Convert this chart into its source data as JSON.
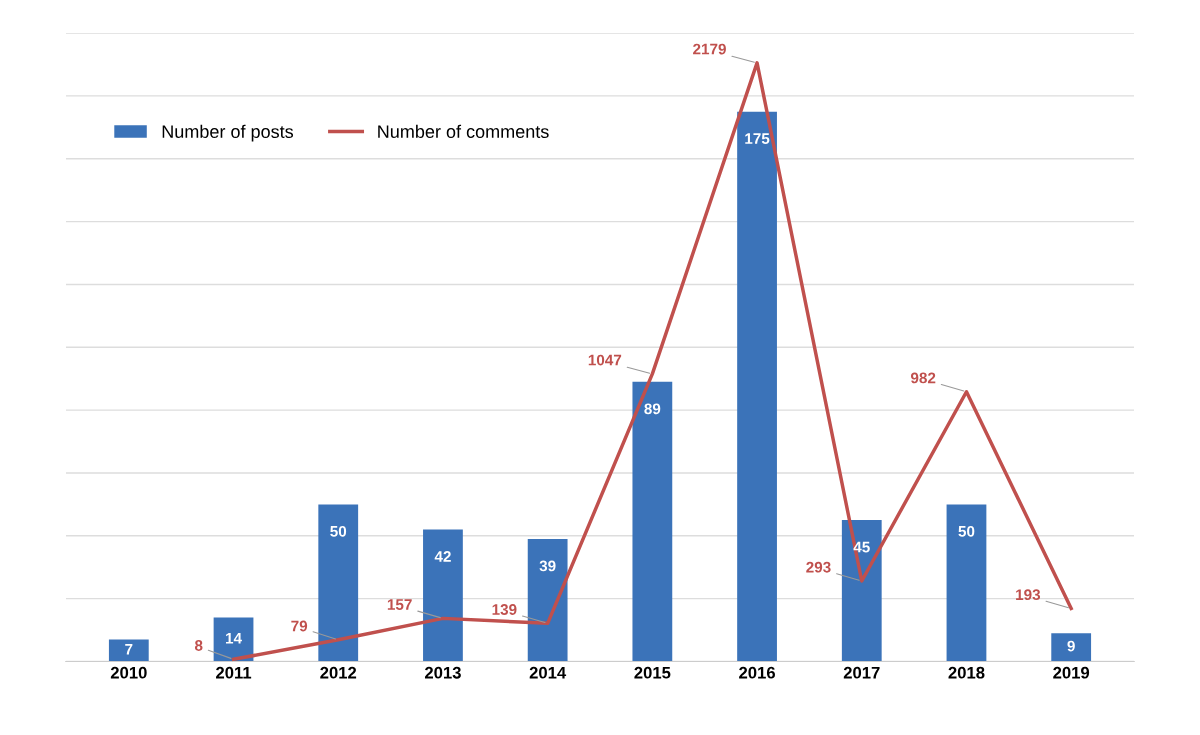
{
  "chart_data": {
    "type": "bar",
    "categories": [
      "2010",
      "2011",
      "2012",
      "2013",
      "2014",
      "2015",
      "2016",
      "2017",
      "2018",
      "2019"
    ],
    "series": [
      {
        "name": "Number of posts",
        "color": "#3b73b9",
        "values": [
          7,
          14,
          50,
          42,
          39,
          89,
          175,
          45,
          50,
          9
        ]
      },
      {
        "name": "Number of comments",
        "type": "line",
        "axis": "y2",
        "color": "#c0504d",
        "values": [
          null,
          8,
          79,
          157,
          139,
          1047,
          2179,
          293,
          982,
          193
        ]
      }
    ],
    "ylim": [
      0,
      200
    ],
    "yticks": [
      {
        "value": 0,
        "label": null
      },
      {
        "value": 20,
        "label": null
      },
      {
        "value": 40,
        "label": null
      },
      {
        "value": 60,
        "label": null
      },
      {
        "value": 80,
        "label": null
      },
      {
        "value": 100,
        "label": null
      },
      {
        "value": 120,
        "label": null
      },
      {
        "value": 140,
        "label": null
      },
      {
        "value": 160,
        "label": null
      },
      {
        "value": 180,
        "label": null
      },
      {
        "value": 200,
        "label": null
      }
    ],
    "tick_labels": "x",
    "grid": "y",
    "legend": "top left",
    "data_labels": true,
    "marker": "none",
    "line_style": "solid"
  }
}
